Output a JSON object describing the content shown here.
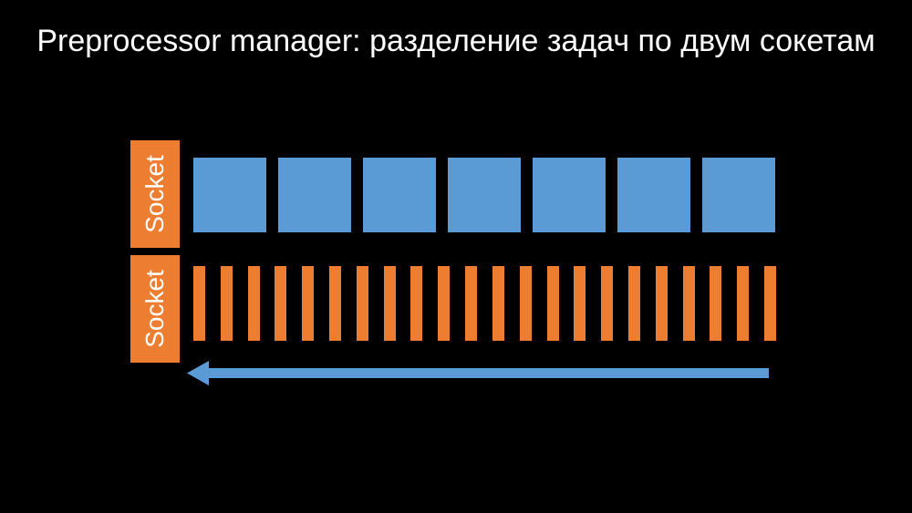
{
  "slide": {
    "title": "Preprocessor manager: разделение задач по двум сокетам"
  },
  "sockets": [
    {
      "label": "Socket",
      "task_kind": "large",
      "task_count": 7,
      "task_color": "#5b9bd5"
    },
    {
      "label": "Socket",
      "task_kind": "small",
      "task_count": 22,
      "task_color": "#ed7d31"
    }
  ],
  "colors": {
    "background": "#000000",
    "socket_label_bg": "#ed7d31",
    "large_task": "#5b9bd5",
    "small_task": "#ed7d31",
    "arrow": "#5b9bd5",
    "text": "#ffffff"
  },
  "arrow": {
    "direction": "left",
    "icon": "left-arrow-icon"
  }
}
